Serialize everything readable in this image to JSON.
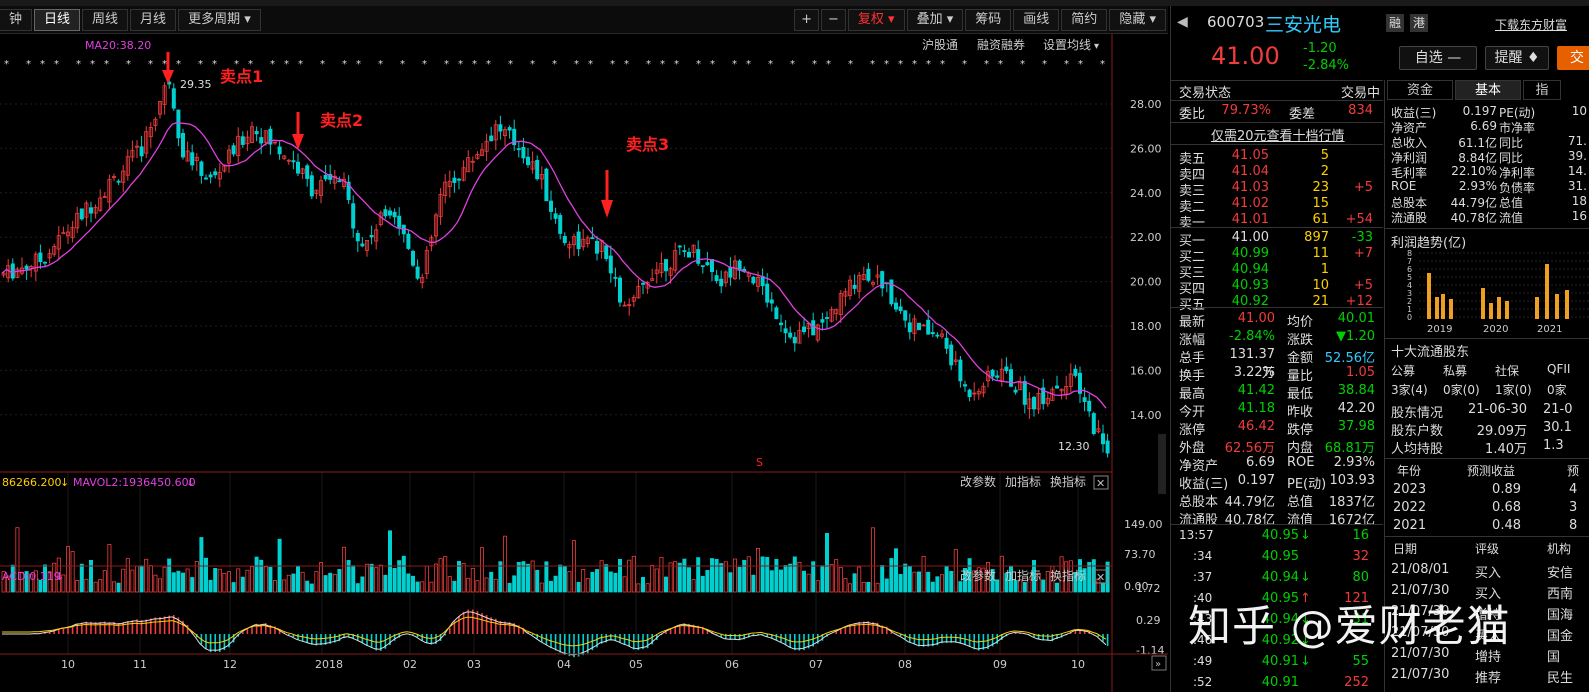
{
  "toolbar": {
    "minute": "钟",
    "daily": "日线",
    "weekly": "周线",
    "monthly": "月线",
    "more": "更多周期",
    "plus": "+",
    "minus": "−",
    "restore": "复权",
    "overlay": "叠加",
    "chips": "筹码",
    "draw": "画线",
    "simple": "简约",
    "hide": "隐藏"
  },
  "links": {
    "hgt": "沪股通",
    "margin": "融资融券",
    "ma_set": "设置均线"
  },
  "ma_label": "MA20:38.20",
  "annotations": {
    "sell1": "卖点1",
    "sell2": "卖点2",
    "sell3": "卖点3",
    "high": "29.35",
    "low": "12.30",
    "s_marker": "S"
  },
  "vol_label": {
    "a": "86266.200",
    "b": "MAVOL2:1936450.600"
  },
  "macd_label": "ACD:0.119",
  "panel_tools": {
    "a": "改参数",
    "b": "加指标",
    "c": "换指标",
    "close": "✕"
  },
  "price_axis": [
    "28.00",
    "26.00",
    "24.00",
    "22.00",
    "20.00",
    "18.00",
    "16.00",
    "14.00"
  ],
  "vol_axis": [
    "149.00",
    "73.70",
    "0.00"
  ],
  "macd_axis": [
    "1.72",
    "0.29",
    "-1.14"
  ],
  "time_axis": [
    "10",
    "11",
    "12",
    "2018",
    "02",
    "03",
    "04",
    "05",
    "06",
    "07",
    "08",
    "09",
    "10"
  ],
  "watermark": "知乎 @爱财老猫",
  "stock": {
    "code": "600703",
    "name": "三安光电",
    "price": "41.00",
    "change": "-1.20",
    "pct": "-2.84%",
    "tag1": "融",
    "tag2": "港",
    "download": "下载东方财富"
  },
  "actions": {
    "watch": "自选",
    "alert": "提醒",
    "trade": "交"
  },
  "status": {
    "label": "交易状态",
    "value": "交易中"
  },
  "weibi": {
    "l1": "委比",
    "v1": "79.73%",
    "l2": "委差",
    "v2": "834"
  },
  "level10": "仅需20元查看十档行情",
  "asks": [
    {
      "l": "卖五",
      "p": "41.05",
      "v": "5",
      "d": ""
    },
    {
      "l": "卖四",
      "p": "41.04",
      "v": "2",
      "d": ""
    },
    {
      "l": "卖三",
      "p": "41.03",
      "v": "23",
      "d": "+5"
    },
    {
      "l": "卖二",
      "p": "41.02",
      "v": "15",
      "d": ""
    },
    {
      "l": "卖一",
      "p": "41.01",
      "v": "61",
      "d": "+54"
    }
  ],
  "bids": [
    {
      "l": "买一",
      "p": "41.00",
      "v": "897",
      "d": "-33"
    },
    {
      "l": "买二",
      "p": "40.99",
      "v": "11",
      "d": "+7"
    },
    {
      "l": "买三",
      "p": "40.94",
      "v": "1",
      "d": ""
    },
    {
      "l": "买四",
      "p": "40.93",
      "v": "10",
      "d": "+5"
    },
    {
      "l": "买五",
      "p": "40.92",
      "v": "21",
      "d": "+12"
    }
  ],
  "quote": [
    {
      "l1": "最新",
      "v1": "41.00",
      "c1": "r",
      "l2": "均价",
      "v2": "40.01",
      "c2": "g"
    },
    {
      "l1": "涨幅",
      "v1": "-2.84%",
      "c1": "g",
      "l2": "涨跌",
      "v2": "▼1.20",
      "c2": "g"
    },
    {
      "l1": "总手",
      "v1": "131.37万",
      "c1": "w",
      "l2": "金额",
      "v2": "52.56亿",
      "c2": "c"
    },
    {
      "l1": "换手",
      "v1": "3.22%",
      "c1": "w",
      "l2": "量比",
      "v2": "1.05",
      "c2": "r"
    },
    {
      "l1": "最高",
      "v1": "41.42",
      "c1": "g",
      "l2": "最低",
      "v2": "38.84",
      "c2": "g"
    },
    {
      "l1": "今开",
      "v1": "41.18",
      "c1": "g",
      "l2": "昨收",
      "v2": "42.20",
      "c2": "w"
    },
    {
      "l1": "涨停",
      "v1": "46.42",
      "c1": "r",
      "l2": "跌停",
      "v2": "37.98",
      "c2": "g"
    },
    {
      "l1": "外盘",
      "v1": "62.56万",
      "c1": "r",
      "l2": "内盘",
      "v2": "68.81万",
      "c2": "g"
    },
    {
      "l1": "净资产",
      "v1": "6.69",
      "c1": "w",
      "l2": "ROE",
      "v2": "2.93%",
      "c2": "w"
    },
    {
      "l1": "收益(三)",
      "v1": "0.197",
      "c1": "w",
      "l2": "PE(动)",
      "v2": "103.93",
      "c2": "w"
    },
    {
      "l1": "总股本",
      "v1": "44.79亿",
      "c1": "w",
      "l2": "总值",
      "v2": "1837亿",
      "c2": "w"
    },
    {
      "l1": "流通股",
      "v1": "40.78亿",
      "c1": "w",
      "l2": "流值",
      "v2": "1672亿",
      "c2": "w"
    }
  ],
  "ticks": [
    {
      "t": "13:57",
      "p": "40.95",
      "a": "↓",
      "v": "16",
      "vc": "g"
    },
    {
      "t": ":34",
      "p": "40.95",
      "a": "",
      "v": "32",
      "vc": "r"
    },
    {
      "t": ":37",
      "p": "40.94",
      "a": "↓",
      "v": "80",
      "vc": "g"
    },
    {
      "t": ":40",
      "p": "40.95",
      "a": "↑",
      "v": "121",
      "vc": "r"
    },
    {
      "t": ":43",
      "p": "40.94",
      "a": "↓",
      "v": "31",
      "vc": "g"
    },
    {
      "t": ":46",
      "p": "40.92",
      "a": "↓",
      "v": "",
      "vc": "g"
    },
    {
      "t": ":49",
      "p": "40.91",
      "a": "↓",
      "v": "55",
      "vc": "g"
    },
    {
      "t": ":52",
      "p": "40.91",
      "a": "",
      "v": "252",
      "vc": "r"
    }
  ],
  "right_tabs": [
    "资金",
    "基本",
    "指"
  ],
  "fundamentals": [
    {
      "l": "收益(三)",
      "v": "0.197",
      "l2": "PE(动)",
      "v2": "10"
    },
    {
      "l": "净资产",
      "v": "6.69",
      "l2": "市净率",
      "v2": ""
    },
    {
      "l": "总收入",
      "v": "61.1亿",
      "l2": "同比",
      "v2": "71."
    },
    {
      "l": "净利润",
      "v": "8.84亿",
      "l2": "同比",
      "v2": "39."
    },
    {
      "l": "毛利率",
      "v": "22.10%",
      "l2": "净利率",
      "v2": "14."
    },
    {
      "l": "ROE",
      "v": "2.93%",
      "l2": "负债率",
      "v2": "31."
    },
    {
      "l": "总股本",
      "v": "44.79亿",
      "l2": "总值",
      "v2": "18"
    },
    {
      "l": "流通股",
      "v": "40.78亿",
      "l2": "流值",
      "v2": "16"
    }
  ],
  "profit_trend": {
    "title": "利润趋势(亿)",
    "y": [
      "8",
      "7",
      "6",
      "5",
      "4",
      "3",
      "2",
      "1",
      "0"
    ],
    "years": [
      "2019",
      "2020",
      "2021"
    ]
  },
  "holders": {
    "title": "十大流通股东",
    "cats": [
      "公募",
      "私募",
      "社保",
      "QFII"
    ],
    "counts": [
      "3家(4)",
      "0家(0)",
      "1家(0)",
      "0家"
    ],
    "rows": [
      {
        "l": "股东情况",
        "v": "21-06-30",
        "v2": "21-0"
      },
      {
        "l": "股东户数",
        "v": "29.09万",
        "v2": "30.1"
      },
      {
        "l": "人均持股",
        "v": "1.40万",
        "v2": "1.3"
      }
    ]
  },
  "forecast": {
    "h1": "年份",
    "h2": "预测收益",
    "h3": "预",
    "rows": [
      {
        "y": "2023",
        "v": "0.89",
        "v2": "4"
      },
      {
        "y": "2022",
        "v": "0.68",
        "v2": "3"
      },
      {
        "y": "2021",
        "v": "0.48",
        "v2": "8"
      }
    ]
  },
  "ratings": {
    "h1": "日期",
    "h2": "评级",
    "h3": "机构",
    "rows": [
      {
        "d": "21/08/01",
        "r": "买入",
        "o": "安信"
      },
      {
        "d": "21/07/30",
        "r": "买入",
        "o": "西南"
      },
      {
        "d": "21/07/30",
        "r": "增持",
        "o": "国海"
      },
      {
        "d": "21/07/30",
        "r": "买入",
        "o": "国金"
      },
      {
        "d": "21/07/30",
        "r": "增持",
        "o": "国"
      },
      {
        "d": "21/07/30",
        "r": "推荐",
        "o": "民生"
      }
    ]
  },
  "colors": {
    "up": "#f03c3c",
    "down": "#00d0d0",
    "ma": "#e040e0",
    "arrow": "#ff2020"
  }
}
